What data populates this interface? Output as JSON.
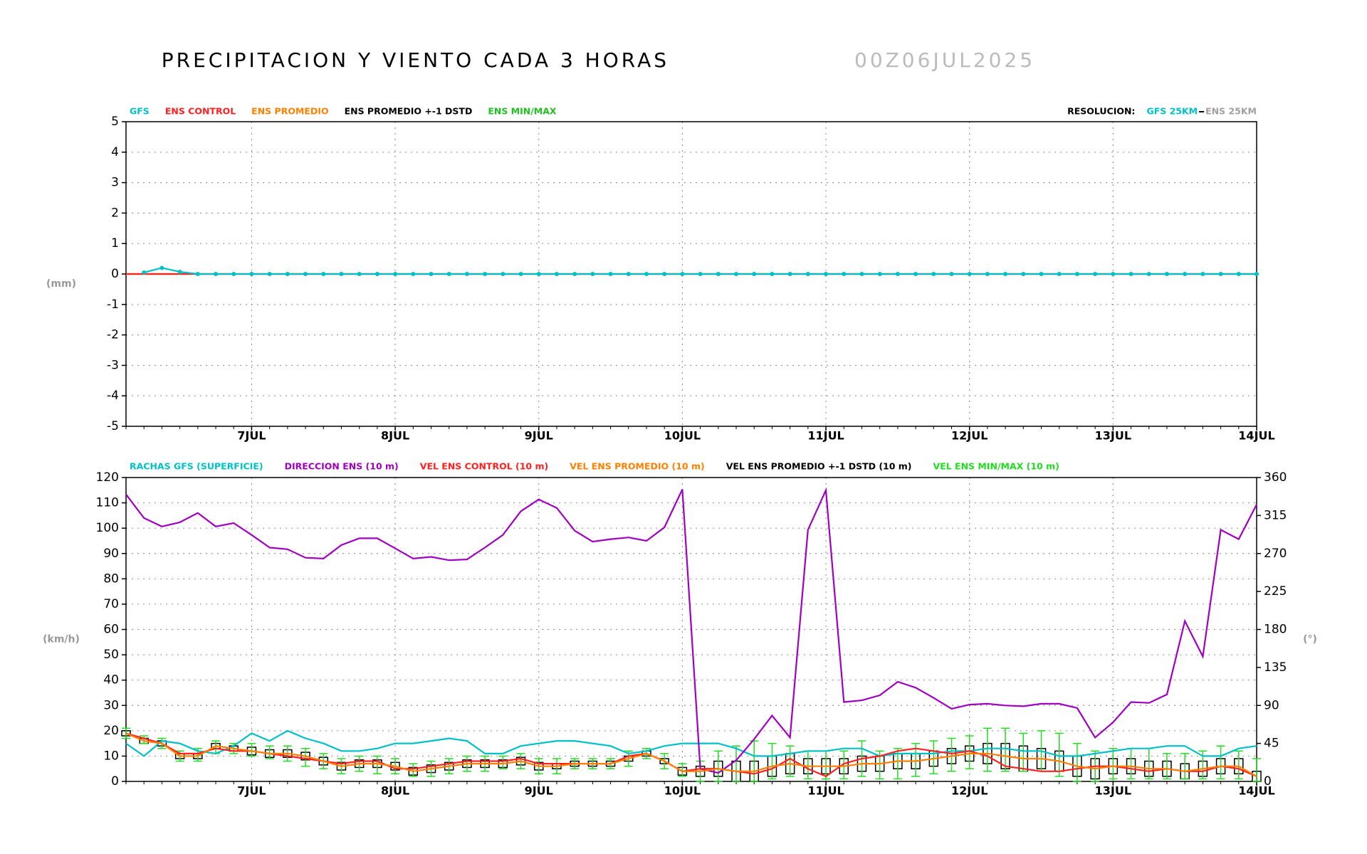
{
  "header": {
    "title": "PRECIPITACION Y VIENTO CADA 3 HORAS",
    "date": "00Z06JUL2025"
  },
  "chart_data": [
    {
      "type": "line",
      "y_label": "(mm)",
      "grid": true,
      "xlim": [
        3,
        192
      ],
      "ylim": [
        -5,
        5
      ],
      "yticks": [
        -5,
        -4,
        -3,
        -2,
        -1,
        0,
        1,
        2,
        3,
        4,
        5
      ],
      "xticks": [
        {
          "value": 24,
          "label": "7JUL"
        },
        {
          "value": 48,
          "label": "8JUL"
        },
        {
          "value": 72,
          "label": "9JUL"
        },
        {
          "value": 96,
          "label": "10JUL"
        },
        {
          "value": 120,
          "label": "11JUL"
        },
        {
          "value": 144,
          "label": "12JUL"
        },
        {
          "value": 168,
          "label": "13JUL"
        },
        {
          "value": 192,
          "label": "14JUL"
        }
      ],
      "x": [
        3,
        6,
        9,
        12,
        15,
        18,
        21,
        24,
        27,
        30,
        33,
        36,
        39,
        42,
        45,
        48,
        51,
        54,
        57,
        60,
        63,
        66,
        69,
        72,
        75,
        78,
        81,
        84,
        87,
        90,
        93,
        96,
        99,
        102,
        105,
        108,
        111,
        114,
        117,
        120,
        123,
        126,
        129,
        132,
        135,
        138,
        141,
        144,
        147,
        150,
        153,
        156,
        159,
        162,
        165,
        168,
        171,
        174,
        177,
        180,
        183,
        186,
        189,
        192
      ],
      "series": [
        {
          "name": "ENS PROMEDIO",
          "color": "#ff8000",
          "kind": "line",
          "values": [
            0,
            0,
            0,
            0,
            0,
            0,
            0,
            0,
            0,
            0,
            0,
            0,
            0,
            0,
            0,
            0,
            0,
            0,
            0,
            0,
            0,
            0,
            0,
            0,
            0,
            0,
            0,
            0,
            0,
            0,
            0,
            0,
            0,
            0,
            0,
            0,
            0,
            0,
            0,
            0,
            0,
            0,
            0,
            0,
            0,
            0,
            0,
            0,
            0,
            0,
            0,
            0,
            0,
            0,
            0,
            0,
            0,
            0,
            0,
            0,
            0,
            0,
            0,
            0
          ]
        },
        {
          "name": "ENS CONTROL",
          "color": "#ff2020",
          "kind": "line",
          "values": [
            0,
            0,
            0,
            0,
            0,
            0,
            0,
            0,
            0,
            0,
            0,
            0,
            0,
            0,
            0,
            0,
            0,
            0,
            0,
            0,
            0,
            0,
            0,
            0,
            0,
            0,
            0,
            0,
            0,
            0,
            0,
            0,
            0,
            0,
            0,
            0,
            0,
            0,
            0,
            0,
            0,
            0,
            0,
            0,
            0,
            0,
            0,
            0,
            0,
            0,
            0,
            0,
            0,
            0,
            0,
            0,
            0,
            0,
            0,
            0,
            0,
            0,
            0,
            0
          ]
        },
        {
          "name": "GFS",
          "color": "#00c0c8",
          "kind": "line",
          "marker": true,
          "values": [
            null,
            0.05,
            0.2,
            0.07,
            0,
            0,
            0,
            0,
            0,
            0,
            0,
            0,
            0,
            0,
            0,
            0,
            0,
            0,
            0,
            0,
            0,
            0,
            0,
            0,
            0,
            0,
            0,
            0,
            0,
            0,
            0,
            0,
            0,
            0,
            0,
            0,
            0,
            0,
            0,
            0,
            0,
            0,
            0,
            0,
            0,
            0,
            0,
            0,
            0,
            0,
            0,
            0,
            0,
            0,
            0,
            0,
            0,
            0,
            0,
            0,
            0,
            0,
            0,
            0
          ]
        }
      ],
      "legend_order": [
        "GFS",
        "ENS CONTROL",
        "ENS PROMEDIO"
      ],
      "legend_extra": [
        {
          "name": "ENS PROMEDIO +-1 DSTD",
          "color": "#000000"
        },
        {
          "name": "ENS MIN/MAX",
          "color": "#20c020"
        }
      ],
      "resolution": {
        "label": "RESOLUCION:",
        "items": [
          {
            "text": "GFS 25KM",
            "color": "#00c0c8"
          },
          {
            "text": "ENS 25KM",
            "color": "#a0a0a0"
          }
        ]
      }
    },
    {
      "type": "line",
      "y_label": "(km/h)",
      "y2_label": "(°)",
      "grid": true,
      "xlim": [
        3,
        192
      ],
      "ylim": [
        0,
        120
      ],
      "yticks": [
        0,
        10,
        20,
        30,
        40,
        50,
        60,
        70,
        80,
        90,
        100,
        110,
        120
      ],
      "y2lim": [
        0,
        360
      ],
      "y2ticks": [
        0,
        45,
        90,
        135,
        180,
        225,
        270,
        315,
        360
      ],
      "xticks": [
        {
          "value": 24,
          "label": "7JUL"
        },
        {
          "value": 48,
          "label": "8JUL"
        },
        {
          "value": 72,
          "label": "9JUL"
        },
        {
          "value": 96,
          "label": "10JUL"
        },
        {
          "value": 120,
          "label": "11JUL"
        },
        {
          "value": 144,
          "label": "12JUL"
        },
        {
          "value": 168,
          "label": "13JUL"
        },
        {
          "value": 192,
          "label": "14JUL"
        }
      ],
      "x": [
        3,
        6,
        9,
        12,
        15,
        18,
        21,
        24,
        27,
        30,
        33,
        36,
        39,
        42,
        45,
        48,
        51,
        54,
        57,
        60,
        63,
        66,
        69,
        72,
        75,
        78,
        81,
        84,
        87,
        90,
        93,
        96,
        99,
        102,
        105,
        108,
        111,
        114,
        117,
        120,
        123,
        126,
        129,
        132,
        135,
        138,
        141,
        144,
        147,
        150,
        153,
        156,
        159,
        162,
        165,
        168,
        171,
        174,
        177,
        180,
        183,
        186,
        189,
        192
      ],
      "series": [
        {
          "name": "RACHAS GFS (SUPERFICIE)",
          "color": "#00c0c8",
          "kind": "line",
          "values": [
            15,
            10,
            16,
            15,
            12,
            11,
            14,
            19,
            16,
            20,
            17,
            15,
            12,
            12,
            13,
            15,
            15,
            16,
            17,
            16,
            11,
            11,
            14,
            15,
            16,
            16,
            15,
            14,
            11,
            12,
            14,
            15,
            15,
            15,
            13,
            10,
            10,
            11,
            12,
            12,
            13,
            13,
            10,
            11,
            11,
            11,
            12,
            12,
            13,
            13,
            12,
            12,
            10,
            10,
            11,
            12,
            13,
            13,
            14,
            14,
            10,
            10,
            13,
            14
          ]
        },
        {
          "name": "DIRECCION ENS (10 m)",
          "color": "#a000c0",
          "kind": "line",
          "axis": "y2",
          "values": [
            340,
            312,
            302,
            307,
            318,
            302,
            306,
            292,
            277,
            275,
            265,
            264,
            280,
            288,
            288,
            276,
            264,
            266,
            262,
            263,
            277,
            292,
            320,
            334,
            324,
            297,
            284,
            287,
            289,
            285,
            301,
            346,
            15,
            10,
            25,
            50,
            78,
            52,
            298,
            345,
            94,
            96,
            102,
            118,
            111,
            99,
            86,
            91,
            92,
            90,
            89,
            92,
            92,
            87,
            52,
            70,
            94,
            93,
            103,
            190,
            148,
            298,
            287,
            328
          ]
        },
        {
          "name": "VEL ENS CONTROL (10 m)",
          "color": "#ff2020",
          "kind": "line",
          "values": [
            19,
            17,
            15,
            11,
            11,
            13,
            12,
            12,
            11,
            10,
            9,
            8,
            7,
            8,
            8,
            5,
            5,
            6,
            7,
            8,
            8,
            8,
            9,
            7,
            7,
            7,
            7,
            7,
            10,
            11,
            8,
            4,
            5,
            5,
            4,
            3,
            5,
            9,
            5,
            2,
            7,
            9,
            10,
            12,
            13,
            12,
            11,
            12,
            10,
            6,
            5,
            4,
            4,
            5,
            6,
            6,
            5,
            4,
            5,
            4,
            4,
            6,
            5,
            2
          ]
        },
        {
          "name": "VEL ENS PROMEDIO (10 m)",
          "color": "#ff8000",
          "kind": "line",
          "values": [
            19,
            16,
            15,
            10,
            10,
            14,
            13,
            12,
            11,
            11,
            10,
            8,
            6,
            7,
            7,
            6,
            4,
            5,
            6,
            7,
            7,
            7,
            8,
            6,
            6,
            7,
            7,
            7,
            9,
            11,
            8,
            4,
            4,
            5,
            4,
            4,
            6,
            7,
            6,
            6,
            6,
            7,
            7,
            8,
            8,
            9,
            10,
            11,
            11,
            10,
            9,
            9,
            8,
            6,
            5,
            6,
            6,
            5,
            5,
            4,
            5,
            6,
            6,
            2
          ]
        },
        {
          "name": "VEL ENS PROMEDIO +-1 DSTD (10 m)",
          "color": "#000000",
          "kind": "box",
          "of": "VEL ENS PROMEDIO (10 m)",
          "values": [
            1,
            1,
            1,
            1,
            1,
            1,
            1,
            1.5,
            1.5,
            1.5,
            1.5,
            1.5,
            1.5,
            1.5,
            1.5,
            1.5,
            1.5,
            1.5,
            1.5,
            1.5,
            1.5,
            1.5,
            1.5,
            1.5,
            1,
            1,
            1,
            1,
            1,
            1,
            1,
            1.5,
            2,
            3,
            4,
            4,
            4,
            4,
            3,
            3,
            3,
            3,
            3,
            3,
            3,
            3,
            3,
            3,
            4,
            5,
            5,
            4,
            4,
            4,
            4,
            3,
            3,
            3,
            3,
            3,
            3,
            3,
            3,
            2
          ]
        },
        {
          "name": "VEL ENS MIN/MAX (10 m)",
          "color": "#20dd20",
          "kind": "range",
          "min": [
            17,
            15,
            13,
            8,
            8,
            11,
            11,
            10,
            9,
            8,
            6,
            5,
            3,
            4,
            3,
            3,
            2,
            2,
            3,
            4,
            4,
            5,
            5,
            3,
            3,
            5,
            5,
            5,
            6,
            9,
            5,
            2,
            0,
            0,
            0,
            0,
            1,
            2,
            1,
            1,
            1,
            2,
            1,
            1,
            2,
            3,
            4,
            5,
            4,
            4,
            4,
            4,
            2,
            0,
            0,
            1,
            1,
            1,
            1,
            1,
            1,
            1,
            1,
            0
          ],
          "max": [
            21,
            18,
            17,
            12,
            13,
            16,
            15,
            15,
            14,
            14,
            13,
            11,
            9,
            10,
            10,
            9,
            7,
            8,
            9,
            10,
            10,
            10,
            11,
            9,
            9,
            9,
            9,
            9,
            12,
            13,
            11,
            7,
            8,
            12,
            14,
            16,
            15,
            14,
            12,
            12,
            12,
            16,
            12,
            13,
            15,
            16,
            17,
            18,
            21,
            21,
            19,
            20,
            19,
            15,
            12,
            13,
            13,
            13,
            11,
            11,
            12,
            14,
            12,
            9
          ]
        }
      ],
      "legend_order": [
        "RACHAS GFS (SUPERFICIE)",
        "DIRECCION ENS (10 m)",
        "VEL ENS CONTROL (10 m)",
        "VEL ENS PROMEDIO (10 m)",
        "VEL ENS PROMEDIO +-1 DSTD (10 m)",
        "VEL ENS MIN/MAX (10 m)"
      ]
    }
  ]
}
